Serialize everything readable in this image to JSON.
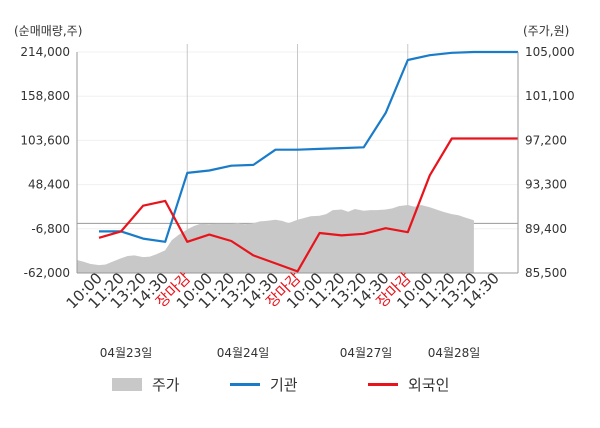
{
  "chart_data": {
    "type": "line",
    "left_axis_unit": "(순매매량,주)",
    "right_axis_unit": "(주가,원)",
    "left_ticks": [
      "214,000",
      "158,800",
      "103,600",
      "48,400",
      "-6,800",
      "-62,000"
    ],
    "right_ticks": [
      "105,000",
      "101,100",
      "97,200",
      "93,300",
      "89,400",
      "85,500"
    ],
    "ylim_left": [
      -62000,
      214000
    ],
    "ylim_right": [
      85500,
      105000
    ],
    "x_ticks": [
      {
        "label": "10:00",
        "type": "time"
      },
      {
        "label": "11:20",
        "type": "time"
      },
      {
        "label": "13:20",
        "type": "time"
      },
      {
        "label": "14:30",
        "type": "time"
      },
      {
        "label": "장마감",
        "type": "close"
      },
      {
        "label": "10:00",
        "type": "time"
      },
      {
        "label": "11:20",
        "type": "time"
      },
      {
        "label": "13:20",
        "type": "time"
      },
      {
        "label": "14:30",
        "type": "time"
      },
      {
        "label": "장마감",
        "type": "close"
      },
      {
        "label": "10:00",
        "type": "time"
      },
      {
        "label": "11:20",
        "type": "time"
      },
      {
        "label": "13:20",
        "type": "time"
      },
      {
        "label": "14:30",
        "type": "time"
      },
      {
        "label": "장마감",
        "type": "close"
      },
      {
        "label": "10:00",
        "type": "time"
      },
      {
        "label": "11:20",
        "type": "time"
      },
      {
        "label": "13:20",
        "type": "time"
      },
      {
        "label": "14:30",
        "type": "time"
      }
    ],
    "dates": [
      "04월23일",
      "04월24일",
      "04월27일",
      "04월28일"
    ],
    "legend": [
      {
        "label": "주가",
        "kind": "area",
        "color": "#c8c8c8"
      },
      {
        "label": "기관",
        "kind": "line",
        "color": "#1a7cc9"
      },
      {
        "label": "외국인",
        "kind": "line",
        "color": "#e8141c"
      }
    ],
    "series": [
      {
        "name": "주가",
        "axis": "right",
        "x": [
          0,
          0.3,
          0.6,
          1,
          1.3,
          1.6,
          2,
          2.3,
          2.6,
          3,
          3.3,
          3.6,
          4,
          4.3,
          4.6,
          5,
          5.3,
          5.6,
          6,
          6.3,
          6.6,
          7,
          7.3,
          7.6,
          8,
          8.3,
          8.6,
          9,
          9.3,
          9.6,
          10,
          10.3,
          10.6,
          11,
          11.3,
          11.6,
          12,
          12.3,
          12.6,
          13,
          13.3,
          13.6,
          14,
          14.3,
          14.6,
          15,
          15.3,
          15.6,
          16,
          16.3,
          16.6,
          17,
          17.3,
          17.6,
          18
        ],
        "values": [
          86650,
          86500,
          86300,
          86200,
          86250,
          86500,
          86800,
          87000,
          87050,
          86900,
          86950,
          87150,
          87500,
          88400,
          88850,
          89350,
          89650,
          89850,
          89800,
          89850,
          89850,
          89850,
          89900,
          89800,
          89900,
          90050,
          90100,
          90200,
          90100,
          89900,
          90200,
          90350,
          90500,
          90550,
          90700,
          91050,
          91100,
          90900,
          91150,
          91000,
          91050,
          91050,
          91100,
          91200,
          91400,
          91500,
          91350,
          91500,
          91300,
          91100,
          90900,
          90700,
          90600,
          90400,
          90150
        ]
      },
      {
        "name": "기관",
        "axis": "left",
        "x": [
          1,
          2,
          3,
          4,
          5,
          6,
          7,
          8,
          9,
          10,
          11,
          12,
          13,
          14,
          15,
          16,
          17,
          18,
          19,
          20
        ],
        "values": [
          -10000,
          -10000,
          -19000,
          -23000,
          63000,
          66000,
          72000,
          73000,
          92000,
          92000,
          93000,
          94000,
          95000,
          138000,
          204000,
          210000,
          213000,
          214000,
          214000,
          214000
        ]
      },
      {
        "name": "외국인",
        "axis": "left",
        "x": [
          1,
          2,
          3,
          4,
          5,
          6,
          7,
          8,
          9,
          10,
          11,
          12,
          13,
          14,
          15,
          16,
          17,
          18,
          19,
          20
        ],
        "values": [
          -18000,
          -10000,
          22000,
          28000,
          -23000,
          -14000,
          -22000,
          -40000,
          -50000,
          -60000,
          -12000,
          -15000,
          -13000,
          -6000,
          -11000,
          60000,
          106000,
          106000,
          106000,
          106000
        ]
      }
    ]
  }
}
